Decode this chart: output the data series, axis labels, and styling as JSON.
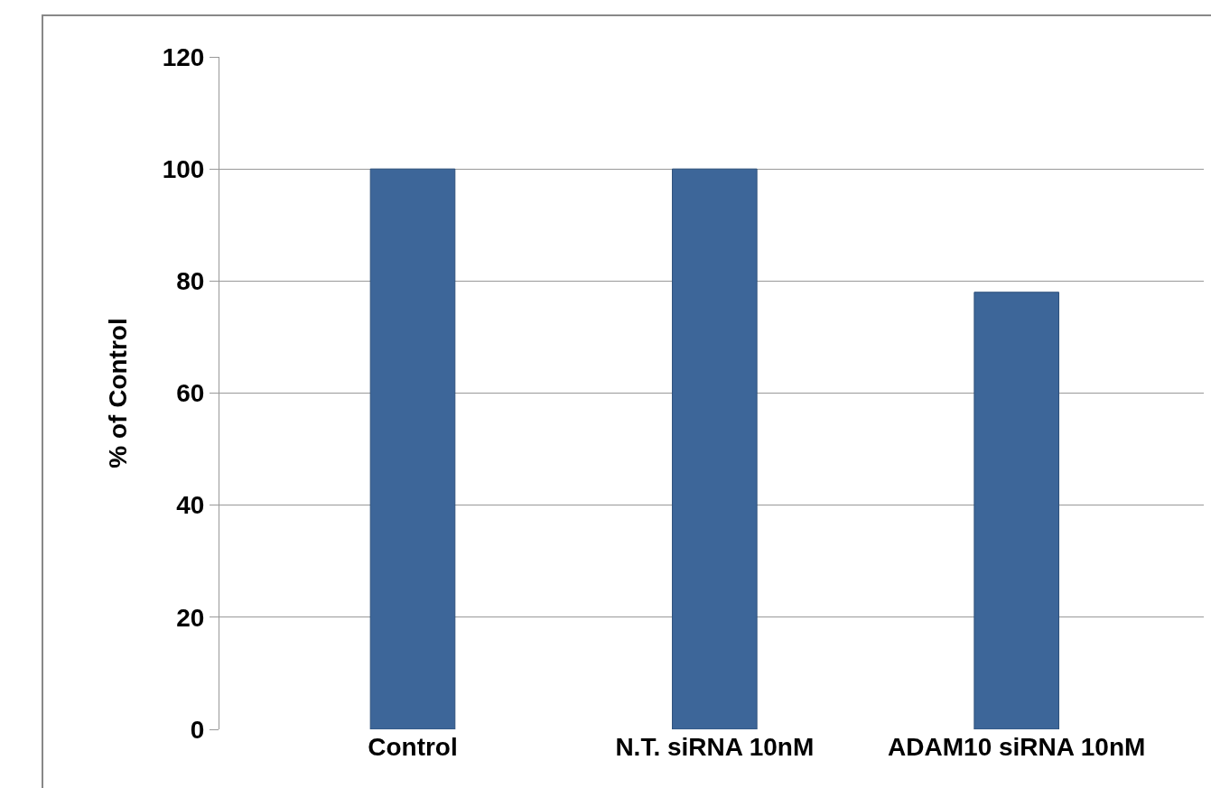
{
  "chart_data": {
    "type": "bar",
    "ylabel": "% of Control",
    "categories": [
      "Control",
      "N.T. siRNA 10nM",
      "ADAM10 siRNA 10nM"
    ],
    "values": [
      100,
      100,
      78
    ],
    "color": "#3d6699",
    "ylim": [
      0,
      120
    ],
    "yticks": [
      0,
      20,
      40,
      60,
      80,
      100,
      120
    ],
    "grid": "y"
  }
}
